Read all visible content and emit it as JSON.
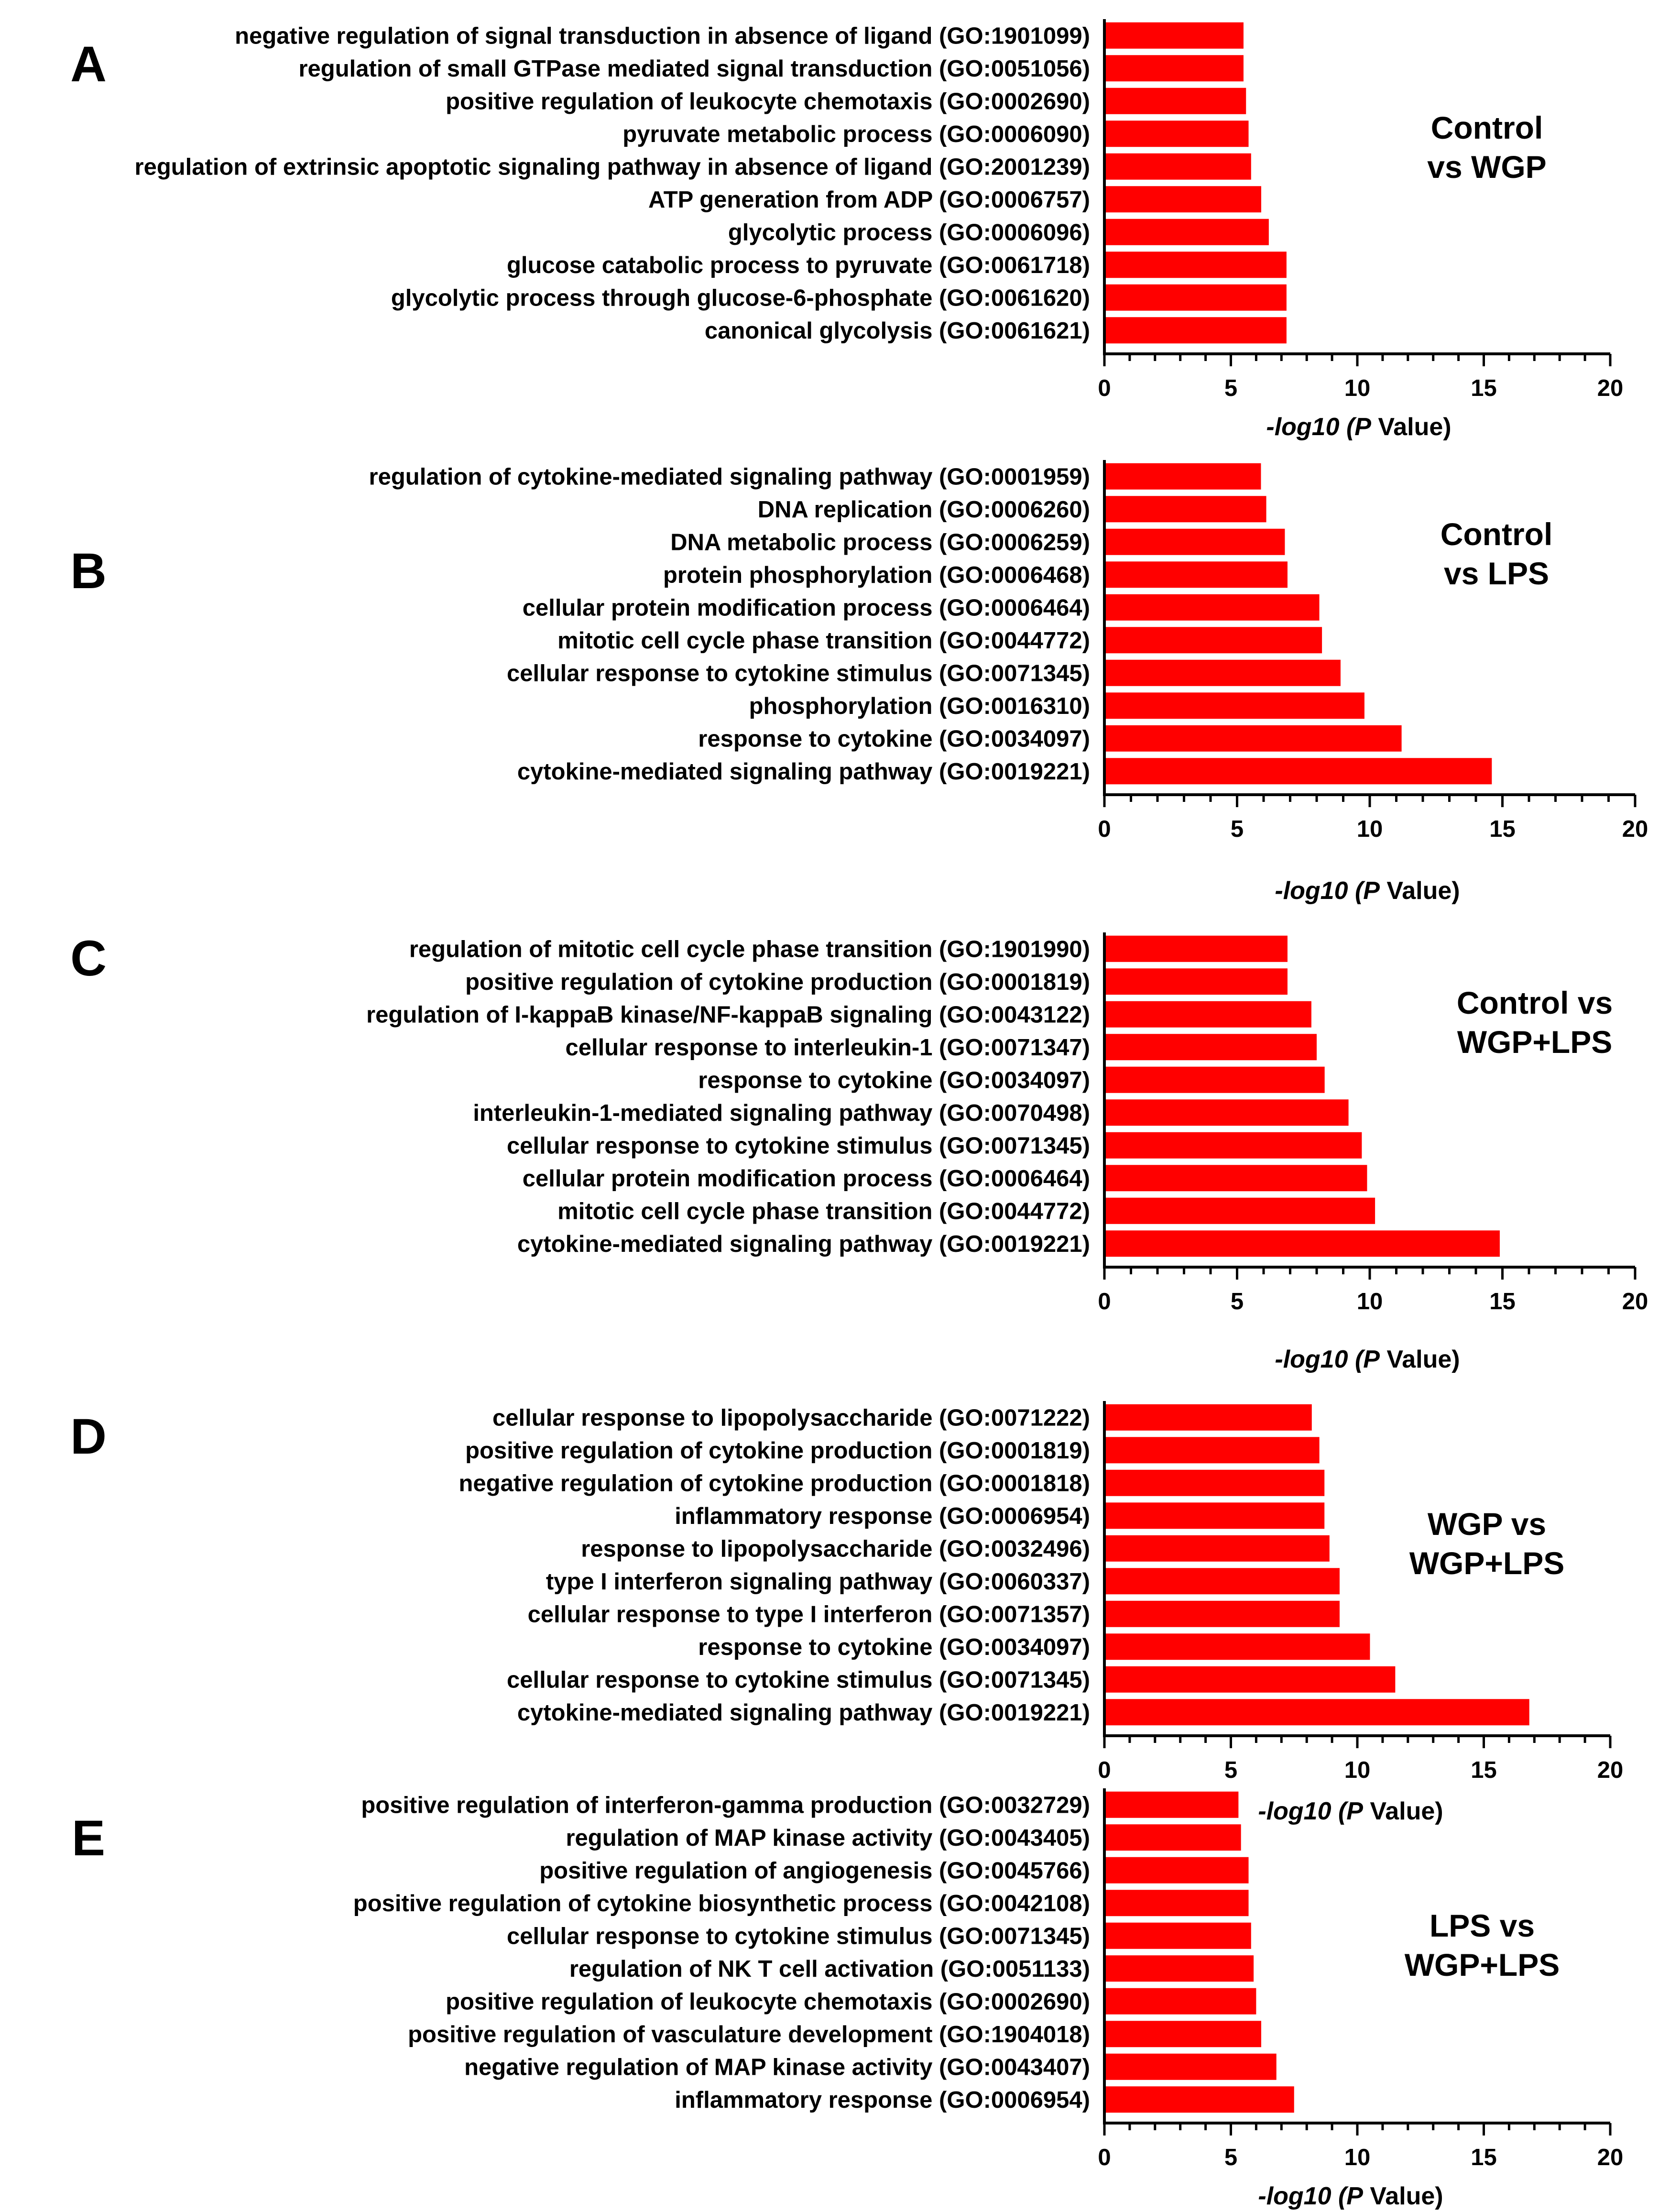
{
  "colors": {
    "bar": "#ff0000",
    "axis": "#000000",
    "background": "#ffffff"
  },
  "chart_data": [
    {
      "type": "bar",
      "orientation": "horizontal",
      "panel": "A",
      "comparison": [
        "Control",
        "vs WGP"
      ],
      "categories": [
        "negative regulation of signal transduction in absence of ligand (GO:1901099)",
        "regulation of small GTPase mediated signal transduction (GO:0051056)",
        "positive regulation of leukocyte chemotaxis (GO:0002690)",
        "pyruvate metabolic process (GO:0006090)",
        "regulation of extrinsic apoptotic signaling pathway in absence of ligand (GO:2001239)",
        "ATP generation from ADP (GO:0006757)",
        "glycolytic process (GO:0006096)",
        "glucose catabolic process to pyruvate (GO:0061718)",
        "glycolytic process through glucose-6-phosphate (GO:0061620)",
        "canonical glycolysis (GO:0061621)"
      ],
      "values": [
        5.5,
        5.5,
        5.6,
        5.7,
        5.8,
        6.2,
        6.5,
        7.2,
        7.2,
        7.2
      ],
      "xlabel": "-log10 (P Value)",
      "xlim": [
        0,
        20
      ],
      "xticks": [
        0,
        5,
        10,
        15,
        20
      ],
      "grid": false,
      "legend": "none"
    },
    {
      "type": "bar",
      "orientation": "horizontal",
      "panel": "B",
      "comparison": [
        "Control",
        "vs LPS"
      ],
      "categories": [
        "regulation of cytokine-mediated signaling pathway (GO:0001959)",
        "DNA replication (GO:0006260)",
        "DNA metabolic process (GO:0006259)",
        "protein phosphorylation (GO:0006468)",
        "cellular protein modification process (GO:0006464)",
        "mitotic cell cycle phase transition (GO:0044772)",
        "cellular response to cytokine stimulus (GO:0071345)",
        "phosphorylation (GO:0016310)",
        "response to cytokine (GO:0034097)",
        "cytokine-mediated signaling pathway (GO:0019221)"
      ],
      "values": [
        5.9,
        6.1,
        6.8,
        6.9,
        8.1,
        8.2,
        8.9,
        9.8,
        11.2,
        14.6
      ],
      "xlabel": "-log10 (P Value)",
      "xlim": [
        0,
        20
      ],
      "xticks": [
        0,
        5,
        10,
        15,
        20
      ],
      "grid": false,
      "legend": "none"
    },
    {
      "type": "bar",
      "orientation": "horizontal",
      "panel": "C",
      "comparison": [
        "Control vs",
        "WGP+LPS"
      ],
      "categories": [
        "regulation of mitotic cell cycle phase transition (GO:1901990)",
        "positive regulation of cytokine production (GO:0001819)",
        "regulation of I-kappaB kinase/NF-kappaB signaling (GO:0043122)",
        "cellular response to interleukin-1 (GO:0071347)",
        "response to cytokine (GO:0034097)",
        "interleukin-1-mediated signaling pathway (GO:0070498)",
        "cellular response to cytokine stimulus (GO:0071345)",
        "cellular protein modification process (GO:0006464)",
        "mitotic cell cycle phase transition (GO:0044772)",
        "cytokine-mediated signaling pathway (GO:0019221)"
      ],
      "values": [
        6.9,
        6.9,
        7.8,
        8.0,
        8.3,
        9.2,
        9.7,
        9.9,
        10.2,
        14.9
      ],
      "xlabel": "-log10 (P Value)",
      "xlim": [
        0,
        20
      ],
      "xticks": [
        0,
        5,
        10,
        15,
        20
      ],
      "grid": false,
      "legend": "none"
    },
    {
      "type": "bar",
      "orientation": "horizontal",
      "panel": "D",
      "comparison": [
        "WGP vs",
        "WGP+LPS"
      ],
      "categories": [
        "cellular response to lipopolysaccharide (GO:0071222)",
        "positive regulation of cytokine production (GO:0001819)",
        "negative regulation of cytokine production (GO:0001818)",
        "inflammatory response (GO:0006954)",
        "response to lipopolysaccharide (GO:0032496)",
        "type I interferon signaling pathway (GO:0060337)",
        "cellular response to type I interferon (GO:0071357)",
        "response to cytokine (GO:0034097)",
        "cellular response to cytokine stimulus (GO:0071345)",
        "cytokine-mediated signaling pathway (GO:0019221)"
      ],
      "values": [
        8.2,
        8.5,
        8.7,
        8.7,
        8.9,
        9.3,
        9.3,
        10.5,
        11.5,
        16.8
      ],
      "xlabel": "-log10 (P Value)",
      "xlim": [
        0,
        20
      ],
      "xticks": [
        0,
        5,
        10,
        15,
        20
      ],
      "grid": false,
      "legend": "none"
    },
    {
      "type": "bar",
      "orientation": "horizontal",
      "panel": "E",
      "comparison": [
        "LPS vs",
        "WGP+LPS"
      ],
      "categories": [
        "positive regulation of interferon-gamma production (GO:0032729)",
        "regulation of MAP kinase activity (GO:0043405)",
        "positive regulation of angiogenesis (GO:0045766)",
        "positive regulation of cytokine biosynthetic process (GO:0042108)",
        "cellular response to cytokine stimulus (GO:0071345)",
        "regulation of NK T cell activation (GO:0051133)",
        "positive regulation of leukocyte chemotaxis (GO:0002690)",
        "positive regulation of vasculature development (GO:1904018)",
        "negative regulation of MAP kinase activity (GO:0043407)",
        "inflammatory response (GO:0006954)"
      ],
      "values": [
        5.3,
        5.4,
        5.7,
        5.7,
        5.8,
        5.9,
        6.0,
        6.2,
        6.8,
        7.5
      ],
      "xlabel": "-log10 (P Value)",
      "xlim": [
        0,
        20
      ],
      "xticks": [
        0,
        5,
        10,
        15,
        20
      ],
      "grid": false,
      "legend": "none"
    }
  ]
}
